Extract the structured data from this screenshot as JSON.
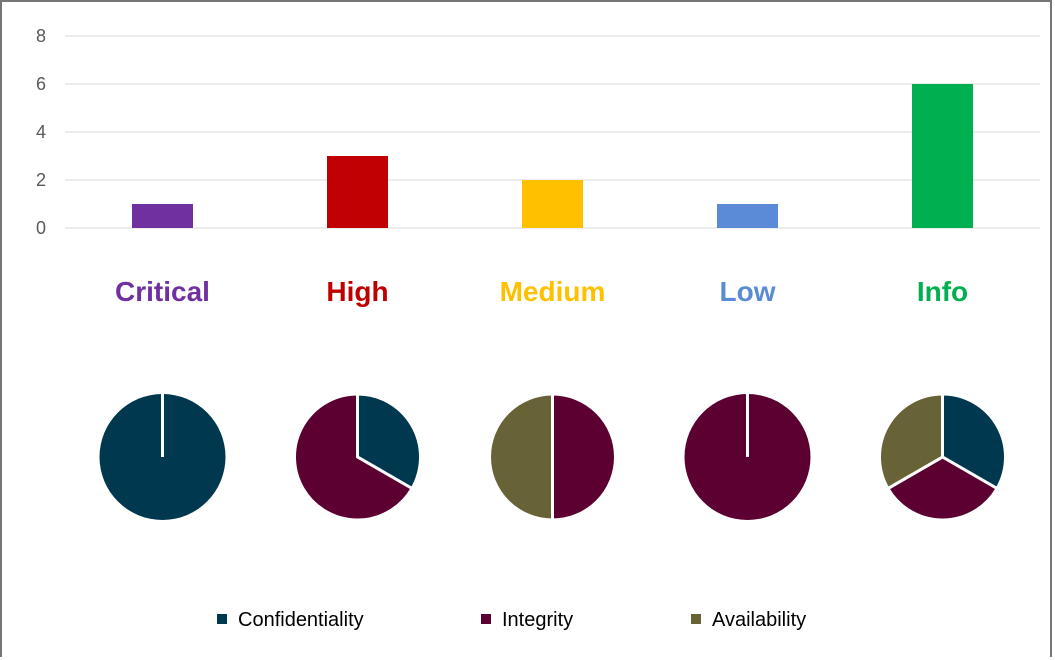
{
  "chart_data": [
    {
      "type": "bar",
      "categories": [
        "Critical",
        "High",
        "Medium",
        "Low",
        "Info"
      ],
      "values": [
        1,
        3,
        2,
        1,
        6
      ],
      "colors": [
        "#7030a0",
        "#c00000",
        "#ffc000",
        "#5b8bd6",
        "#00b050"
      ],
      "ylim": [
        0,
        8
      ],
      "yticks": [
        0,
        2,
        4,
        6,
        8
      ],
      "grid": true,
      "title": "",
      "xlabel": "",
      "ylabel": ""
    },
    {
      "type": "pie",
      "series_names": [
        "Confidentiality",
        "Integrity",
        "Availability"
      ],
      "series_colors": [
        "#00384f",
        "#5b0030",
        "#676337"
      ],
      "pies": [
        {
          "category": "Critical",
          "values": [
            1,
            0,
            0
          ]
        },
        {
          "category": "High",
          "values": [
            1,
            2,
            0
          ]
        },
        {
          "category": "Medium",
          "values": [
            0,
            1,
            1
          ]
        },
        {
          "category": "Low",
          "values": [
            0,
            1,
            0
          ]
        },
        {
          "category": "Info",
          "values": [
            1,
            1,
            1
          ]
        }
      ],
      "legend_position": "bottom"
    }
  ]
}
